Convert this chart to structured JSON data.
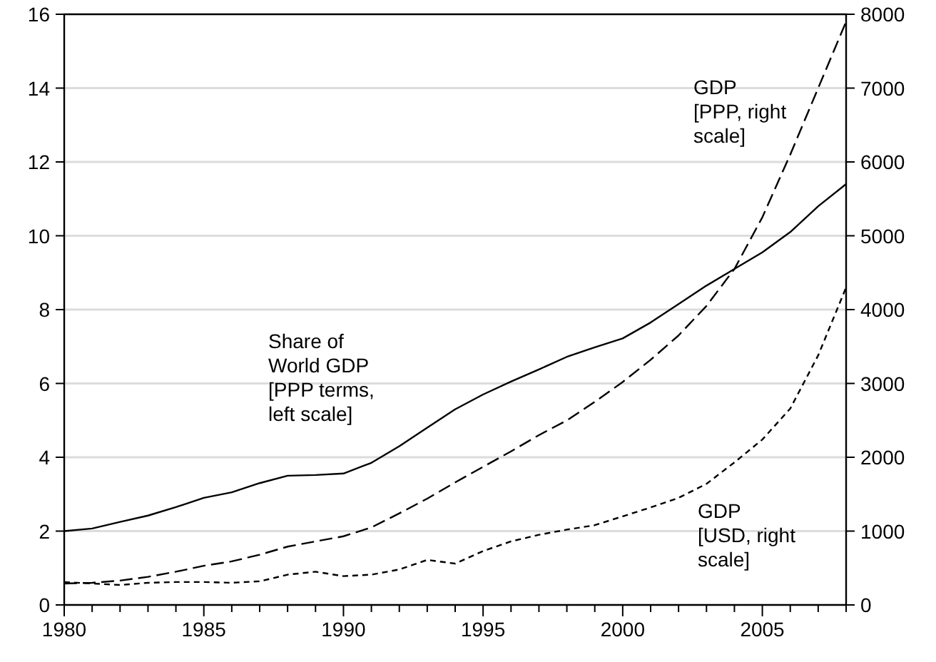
{
  "chart_data": {
    "type": "line",
    "x": [
      1980,
      1981,
      1982,
      1983,
      1984,
      1985,
      1986,
      1987,
      1988,
      1989,
      1990,
      1991,
      1992,
      1993,
      1994,
      1995,
      1996,
      1997,
      1998,
      1999,
      2000,
      2001,
      2002,
      2003,
      2004,
      2005,
      2006,
      2007,
      2008
    ],
    "series": [
      {
        "name": "Share of\nWorld GDP\n[PPP terms,\nleft scale]",
        "color": "#000000",
        "line_style": "solid",
        "values": [
          2.0,
          2.07,
          2.25,
          2.42,
          2.65,
          2.9,
          3.05,
          3.3,
          3.5,
          3.52,
          3.56,
          3.85,
          4.3,
          4.8,
          5.3,
          5.7,
          6.05,
          6.38,
          6.72,
          6.98,
          7.22,
          7.65,
          8.15,
          8.65,
          9.1,
          9.55,
          10.1,
          10.8,
          11.4
        ]
      },
      {
        "name": "GDP\n[PPP, right\nscale]",
        "color": "#000000",
        "line_style": "dashed",
        "axis": "y2",
        "values": [
          290,
          300,
          330,
          380,
          450,
          530,
          590,
          680,
          790,
          860,
          930,
          1050,
          1240,
          1440,
          1660,
          1870,
          2080,
          2300,
          2500,
          2750,
          3020,
          3320,
          3650,
          4050,
          4550,
          5250,
          6100,
          7000,
          7900
        ]
      },
      {
        "name": "GDP\n[USD, right\nscale]",
        "color": "#000000",
        "line_style": "dotted",
        "axis": "y2",
        "values": [
          310,
          290,
          270,
          300,
          310,
          310,
          300,
          320,
          410,
          450,
          390,
          410,
          480,
          610,
          560,
          730,
          860,
          950,
          1020,
          1080,
          1200,
          1320,
          1450,
          1640,
          1930,
          2240,
          2660,
          3380,
          4300
        ]
      }
    ],
    "xlim": [
      1980,
      2008
    ],
    "xticks": [
      1980,
      {
        "value": 1981,
        "label": null
      },
      {
        "value": 1982,
        "label": null
      },
      {
        "value": 1983,
        "label": null
      },
      {
        "value": 1984,
        "label": null
      },
      1985,
      {
        "value": 1986,
        "label": null
      },
      {
        "value": 1987,
        "label": null
      },
      {
        "value": 1988,
        "label": null
      },
      {
        "value": 1989,
        "label": null
      },
      1990,
      {
        "value": 1991,
        "label": null
      },
      {
        "value": 1992,
        "label": null
      },
      {
        "value": 1993,
        "label": null
      },
      {
        "value": 1994,
        "label": null
      },
      1995,
      {
        "value": 1996,
        "label": null
      },
      {
        "value": 1997,
        "label": null
      },
      {
        "value": 1998,
        "label": null
      },
      {
        "value": 1999,
        "label": null
      },
      2000,
      {
        "value": 2001,
        "label": null
      },
      {
        "value": 2002,
        "label": null
      },
      {
        "value": 2003,
        "label": null
      },
      {
        "value": 2004,
        "label": null
      },
      2005,
      {
        "value": 2006,
        "label": null
      },
      {
        "value": 2007,
        "label": null
      },
      {
        "value": 2008,
        "label": null
      }
    ],
    "ylim": [
      0,
      16
    ],
    "yticks": [
      0,
      2,
      4,
      6,
      8,
      10,
      12,
      14,
      16
    ],
    "y2lim": [
      0,
      8000
    ],
    "y2ticks": [
      0,
      1000,
      2000,
      3000,
      4000,
      5000,
      6000,
      7000,
      8000
    ],
    "grid": "y",
    "marker": "none"
  }
}
